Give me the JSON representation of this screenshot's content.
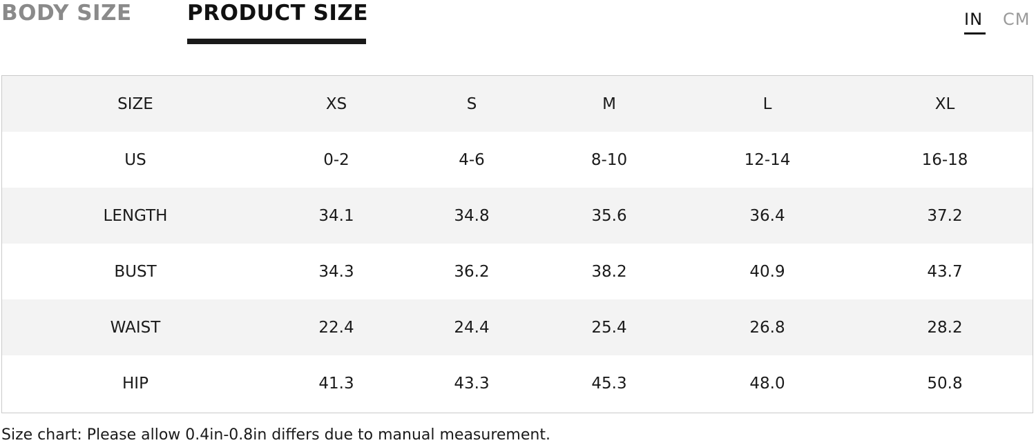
{
  "tabs": {
    "body_size": "BODY SIZE",
    "product_size": "PRODUCT SIZE",
    "active": "PRODUCT SIZE"
  },
  "units": {
    "in": "IN",
    "cm": "CM",
    "active": "IN"
  },
  "table": {
    "header": [
      "SIZE",
      "XS",
      "S",
      "M",
      "L",
      "XL"
    ],
    "rows": [
      [
        "US",
        "0-2",
        "4-6",
        "8-10",
        "12-14",
        "16-18"
      ],
      [
        "LENGTH",
        "34.1",
        "34.8",
        "35.6",
        "36.4",
        "37.2"
      ],
      [
        "BUST",
        "34.3",
        "36.2",
        "38.2",
        "40.9",
        "43.7"
      ],
      [
        "WAIST",
        "22.4",
        "24.4",
        "25.4",
        "26.8",
        "28.2"
      ],
      [
        "HIP",
        "41.3",
        "43.3",
        "45.3",
        "48.0",
        "50.8"
      ]
    ]
  },
  "note": "Size chart: Please allow 0.4in-0.8in differs due to manual measurement.",
  "colors": {
    "shaded_row": "#f3f3f3",
    "inactive_tab": "#8a8a8a",
    "active_tab": "#111111"
  }
}
